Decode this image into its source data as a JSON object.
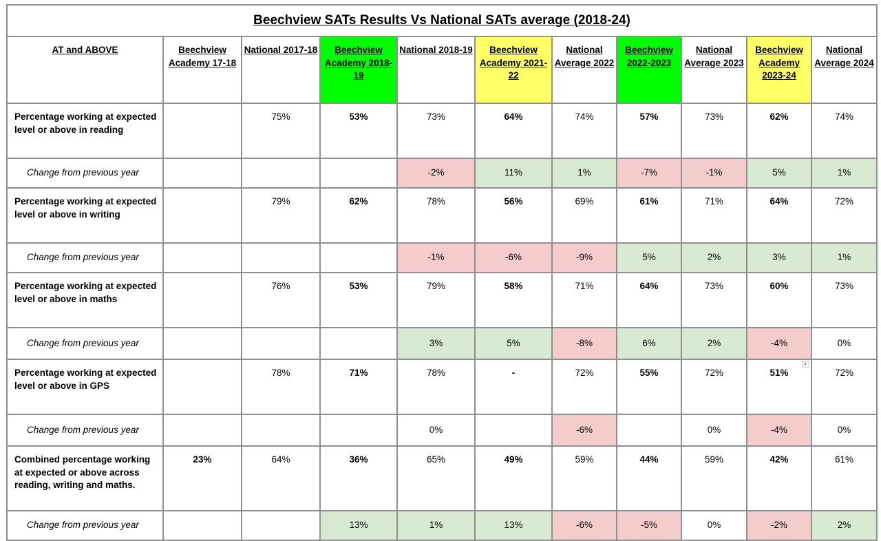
{
  "title": "Beechview SATs Results Vs National SATs average (2018-24)",
  "headers": [
    {
      "label": "AT and ABOVE",
      "fill": ""
    },
    {
      "label": "Beechview Academy 17-18",
      "fill": ""
    },
    {
      "label": "National 2017-18",
      "fill": ""
    },
    {
      "label": "Beechview Academy 2018-19",
      "fill": "green"
    },
    {
      "label": "National 2018-19",
      "fill": ""
    },
    {
      "label": "Beechview Academy 2021-22",
      "fill": "yellow"
    },
    {
      "label": "National Average 2022",
      "fill": ""
    },
    {
      "label": "Beechview 2022-2023",
      "fill": "green"
    },
    {
      "label": "National Average 2023",
      "fill": ""
    },
    {
      "label": "Beechview Academy 2023-24",
      "fill": "yellow"
    },
    {
      "label": "National Average 2024",
      "fill": ""
    }
  ],
  "colors": {
    "green_header": "#00ff00",
    "yellow_header": "#ffff66",
    "positive_change": "#d9ead3",
    "negative_change": "#f4cccc",
    "grid": "#8f8f8f"
  },
  "rows": [
    {
      "kind": "metric",
      "label": "Percentage working at expected level or above in reading",
      "cells": [
        "",
        "75%",
        "53%",
        "73%",
        "64%",
        "74%",
        "57%",
        "73%",
        "62%",
        "74%"
      ]
    },
    {
      "kind": "change",
      "label": "Change from previous year",
      "cells": [
        "",
        "",
        "",
        "-2%",
        "11%",
        "1%",
        "-7%",
        "-1%",
        "5%",
        "1%"
      ],
      "fills": [
        "",
        "",
        "",
        "neg",
        "pos",
        "pos",
        "neg",
        "neg",
        "pos",
        "pos"
      ]
    },
    {
      "kind": "metric",
      "label": "Percentage working at expected level or above in writing",
      "cells": [
        "",
        "79%",
        "62%",
        "78%",
        "56%",
        "69%",
        "61%",
        "71%",
        "64%",
        "72%"
      ]
    },
    {
      "kind": "change",
      "label": "Change from previous year",
      "cells": [
        "",
        "",
        "",
        "-1%",
        "-6%",
        "-9%",
        "5%",
        "2%",
        "3%",
        "1%"
      ],
      "fills": [
        "",
        "",
        "",
        "neg",
        "neg",
        "neg",
        "pos",
        "pos",
        "pos",
        "pos"
      ]
    },
    {
      "kind": "metric",
      "label": "Percentage working at expected level or above in maths",
      "cells": [
        "",
        "76%",
        "53%",
        "79%",
        "58%",
        "71%",
        "64%",
        "73%",
        "60%",
        "73%"
      ]
    },
    {
      "kind": "change",
      "label": "Change from previous year",
      "cells": [
        "",
        "",
        "",
        "3%",
        "5%",
        "-8%",
        "6%",
        "2%",
        "-4%",
        "0%"
      ],
      "fills": [
        "",
        "",
        "",
        "pos",
        "pos",
        "neg",
        "pos",
        "pos",
        "neg",
        ""
      ]
    },
    {
      "kind": "metric",
      "label": "Percentage working at expected level or above in GPS",
      "cells": [
        "",
        "78%",
        "71%",
        "78%",
        "-",
        "72%",
        "55%",
        "72%",
        "51%",
        "72%"
      ]
    },
    {
      "kind": "change",
      "label": "Change from previous year",
      "cells": [
        "",
        "",
        "",
        "0%",
        "",
        "-6%",
        "",
        "0%",
        "-4%",
        "0%"
      ],
      "fills": [
        "",
        "",
        "",
        "",
        "",
        "neg",
        "",
        "",
        "neg",
        ""
      ]
    },
    {
      "kind": "metric",
      "label": "Combined percentage working at expected or above across reading, writing and maths.",
      "cells": [
        "23%",
        "64%",
        "36%",
        "65%",
        "49%",
        "59%",
        "44%",
        "59%",
        "42%",
        "61%"
      ]
    },
    {
      "kind": "change",
      "label": "Change from previous year",
      "cells": [
        "",
        "",
        "13%",
        "1%",
        "13%",
        "-6%",
        "-5%",
        "0%",
        "-2%",
        "2%"
      ],
      "fills": [
        "",
        "",
        "pos",
        "pos",
        "pos",
        "neg",
        "neg",
        "",
        "neg",
        "pos"
      ]
    }
  ],
  "filter_icon": "dropdown-filter-icon"
}
